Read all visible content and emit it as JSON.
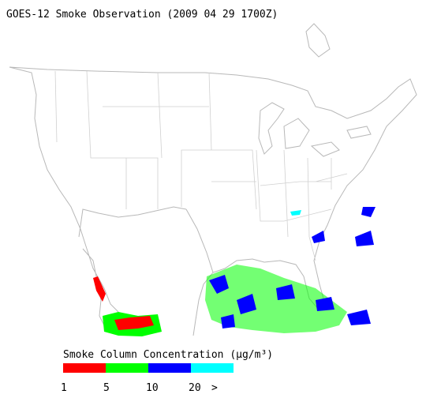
{
  "header": {
    "title": "GOES-12 Smoke Observation (2009 04 29  1700Z)"
  },
  "legend": {
    "title": "Smoke Column Concentration (μg/m³)",
    "colors": [
      "#ff0000",
      "#00ff00",
      "#0000ff",
      "#00ffff"
    ],
    "labels": [
      "1",
      "5",
      "10",
      "20",
      ">"
    ]
  }
}
